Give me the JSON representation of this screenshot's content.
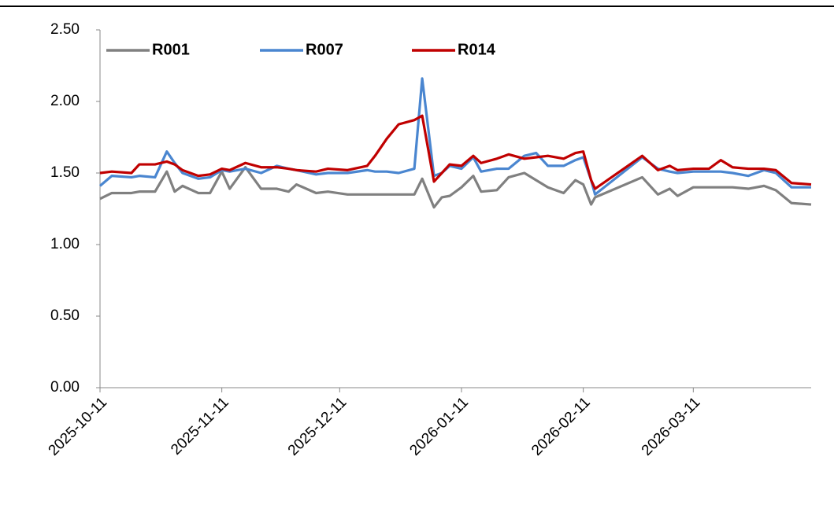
{
  "chart_data": {
    "type": "line",
    "x": [
      "2025-10-11",
      "2025-10-14",
      "2025-10-19",
      "2025-10-21",
      "2025-10-25",
      "2025-10-28",
      "2025-10-30",
      "2025-11-01",
      "2025-11-05",
      "2025-11-08",
      "2025-11-11",
      "2025-11-13",
      "2025-11-17",
      "2025-11-21",
      "2025-11-25",
      "2025-11-28",
      "2025-11-30",
      "2025-12-05",
      "2025-12-08",
      "2025-12-13",
      "2025-12-18",
      "2025-12-20",
      "2025-12-23",
      "2025-12-26",
      "2025-12-30",
      "2026-01-01",
      "2026-01-04",
      "2026-01-06",
      "2026-01-08",
      "2026-01-11",
      "2026-01-14",
      "2026-01-16",
      "2026-01-20",
      "2026-01-23",
      "2026-01-27",
      "2026-01-30",
      "2026-02-02",
      "2026-02-06",
      "2026-02-09",
      "2026-02-11",
      "2026-02-13",
      "2026-02-14",
      "2026-02-26",
      "2026-03-02",
      "2026-03-05",
      "2026-03-07",
      "2026-03-11",
      "2026-03-15",
      "2026-03-18",
      "2026-03-21",
      "2026-03-25",
      "2026-03-29",
      "2026-04-01",
      "2026-04-05",
      "2026-04-10"
    ],
    "series": [
      {
        "name": "R001",
        "color": "#808080",
        "values": [
          1.32,
          1.36,
          1.36,
          1.37,
          1.37,
          1.51,
          1.37,
          1.41,
          1.36,
          1.36,
          1.51,
          1.39,
          1.54,
          1.39,
          1.39,
          1.37,
          1.42,
          1.36,
          1.37,
          1.35,
          1.35,
          1.35,
          1.35,
          1.35,
          1.35,
          1.46,
          1.26,
          1.33,
          1.34,
          1.4,
          1.48,
          1.37,
          1.38,
          1.47,
          1.5,
          1.45,
          1.4,
          1.36,
          1.45,
          1.42,
          1.28,
          1.33,
          1.47,
          1.35,
          1.39,
          1.34,
          1.4,
          1.4,
          1.4,
          1.4,
          1.39,
          1.41,
          1.38,
          1.29,
          1.28
        ]
      },
      {
        "name": "R007",
        "color": "#4a86d0",
        "values": [
          1.41,
          1.48,
          1.47,
          1.48,
          1.47,
          1.65,
          1.57,
          1.5,
          1.46,
          1.47,
          1.52,
          1.51,
          1.53,
          1.5,
          1.55,
          1.53,
          1.52,
          1.49,
          1.5,
          1.5,
          1.52,
          1.51,
          1.51,
          1.5,
          1.53,
          2.16,
          1.48,
          1.5,
          1.55,
          1.53,
          1.61,
          1.51,
          1.53,
          1.53,
          1.62,
          1.64,
          1.55,
          1.55,
          1.59,
          1.61,
          1.45,
          1.35,
          1.61,
          1.53,
          1.51,
          1.5,
          1.51,
          1.51,
          1.51,
          1.5,
          1.48,
          1.52,
          1.5,
          1.4,
          1.4
        ]
      },
      {
        "name": "R014",
        "color": "#c00000",
        "values": [
          1.5,
          1.51,
          1.5,
          1.56,
          1.56,
          1.58,
          1.56,
          1.52,
          1.48,
          1.49,
          1.53,
          1.52,
          1.57,
          1.54,
          1.54,
          1.53,
          1.52,
          1.51,
          1.53,
          1.52,
          1.55,
          1.62,
          1.74,
          1.84,
          1.87,
          1.9,
          1.44,
          1.5,
          1.56,
          1.55,
          1.62,
          1.57,
          1.6,
          1.63,
          1.6,
          1.61,
          1.62,
          1.6,
          1.64,
          1.65,
          1.45,
          1.39,
          1.62,
          1.52,
          1.55,
          1.52,
          1.53,
          1.53,
          1.59,
          1.54,
          1.53,
          1.53,
          1.52,
          1.43,
          1.42
        ]
      }
    ],
    "xlim": [
      "2025-10-11",
      "2026-04-10"
    ],
    "xticks": [
      "2025-10-11",
      "2025-11-11",
      "2025-12-11",
      "2026-01-11",
      "2026-02-11",
      "2026-03-11"
    ],
    "ylim": [
      0,
      2.5
    ],
    "yticks": [
      {
        "value": 0,
        "label": "0.00"
      },
      {
        "value": 0.5,
        "label": "0.50"
      },
      {
        "value": 1,
        "label": "1.00"
      },
      {
        "value": 1.5,
        "label": "1.50"
      },
      {
        "value": 2,
        "label": "2.00"
      },
      {
        "value": 2.5,
        "label": "2.50"
      }
    ],
    "legend": "top",
    "grid": false
  }
}
